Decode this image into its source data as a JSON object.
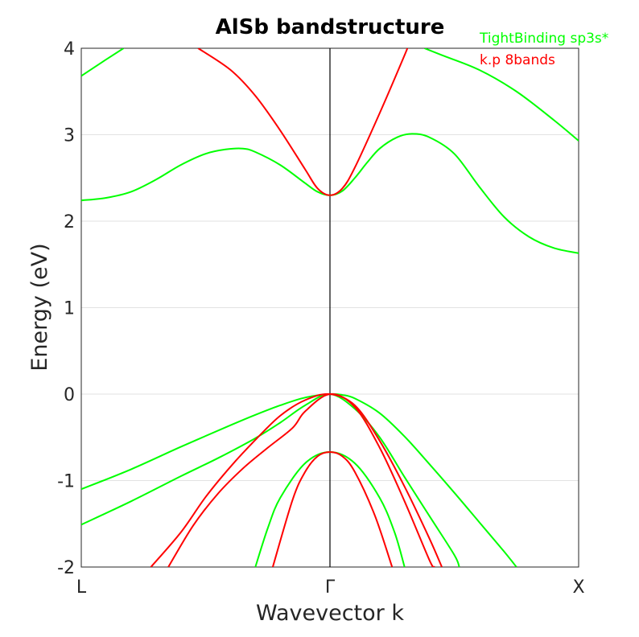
{
  "chart_data": {
    "type": "line",
    "title": "AlSb bandstructure",
    "xlabel": "Wavevector k",
    "ylabel": "Energy (eV)",
    "xlim": [
      -1,
      1
    ],
    "ylim": [
      -2,
      4
    ],
    "x_ticks": [
      {
        "value": -1,
        "label": "L"
      },
      {
        "value": 0,
        "label": "Γ"
      },
      {
        "value": 1,
        "label": "X"
      }
    ],
    "y_ticks": [
      -2,
      -1,
      0,
      1,
      2,
      3,
      4
    ],
    "y_tick_labels": [
      "-2",
      "-1",
      "0",
      "1",
      "2",
      "3",
      "4"
    ],
    "grid": true,
    "vertical_line_at": 0,
    "legend_position": "top-right",
    "series": [
      {
        "name": "TightBinding sp3s*",
        "color": "#00ff00",
        "bands": [
          [
            [
              -1.0,
              3.68
            ],
            [
              -0.9,
              3.87
            ],
            [
              -0.83,
              4.0
            ]
          ],
          [
            [
              -1.0,
              2.24
            ],
            [
              -0.9,
              2.27
            ],
            [
              -0.8,
              2.34
            ],
            [
              -0.7,
              2.48
            ],
            [
              -0.6,
              2.65
            ],
            [
              -0.5,
              2.78
            ],
            [
              -0.42,
              2.83
            ],
            [
              -0.35,
              2.84
            ],
            [
              -0.3,
              2.8
            ],
            [
              -0.2,
              2.65
            ],
            [
              -0.1,
              2.44
            ],
            [
              -0.05,
              2.34
            ],
            [
              0.0,
              2.3
            ],
            [
              0.05,
              2.35
            ],
            [
              0.1,
              2.5
            ],
            [
              0.15,
              2.68
            ],
            [
              0.2,
              2.84
            ],
            [
              0.27,
              2.97
            ],
            [
              0.33,
              3.01
            ],
            [
              0.4,
              2.97
            ],
            [
              0.5,
              2.78
            ],
            [
              0.6,
              2.4
            ],
            [
              0.7,
              2.05
            ],
            [
              0.8,
              1.82
            ],
            [
              0.9,
              1.69
            ],
            [
              1.0,
              1.63
            ]
          ],
          [
            [
              0.38,
              4.0
            ],
            [
              0.45,
              3.92
            ],
            [
              0.6,
              3.75
            ],
            [
              0.75,
              3.5
            ],
            [
              0.9,
              3.17
            ],
            [
              1.0,
              2.93
            ]
          ],
          [
            [
              -1.0,
              -1.1
            ],
            [
              -0.8,
              -0.87
            ],
            [
              -0.6,
              -0.61
            ],
            [
              -0.4,
              -0.36
            ],
            [
              -0.3,
              -0.24
            ],
            [
              -0.2,
              -0.13
            ],
            [
              -0.1,
              -0.04
            ],
            [
              0.0,
              0.0
            ],
            [
              0.05,
              -0.01
            ],
            [
              0.1,
              -0.05
            ],
            [
              0.2,
              -0.22
            ],
            [
              0.3,
              -0.49
            ],
            [
              0.4,
              -0.81
            ],
            [
              0.5,
              -1.14
            ],
            [
              0.6,
              -1.48
            ],
            [
              0.7,
              -1.82
            ],
            [
              0.75,
              -2.0
            ]
          ],
          [
            [
              -1.0,
              -1.51
            ],
            [
              -0.8,
              -1.24
            ],
            [
              -0.6,
              -0.95
            ],
            [
              -0.45,
              -0.74
            ],
            [
              -0.3,
              -0.51
            ],
            [
              -0.2,
              -0.33
            ],
            [
              -0.1,
              -0.13
            ],
            [
              0.0,
              0.0
            ],
            [
              0.1,
              -0.17
            ],
            [
              0.2,
              -0.5
            ],
            [
              0.3,
              -0.96
            ],
            [
              0.4,
              -1.41
            ],
            [
              0.5,
              -1.86
            ],
            [
              0.52,
              -2.0
            ]
          ],
          [
            [
              -0.3,
              -2.0
            ],
            [
              -0.25,
              -1.55
            ],
            [
              -0.2,
              -1.2
            ],
            [
              -0.1,
              -0.8
            ],
            [
              0.0,
              -0.67
            ],
            [
              0.1,
              -0.8
            ],
            [
              0.2,
              -1.2
            ],
            [
              0.26,
              -1.6
            ],
            [
              0.3,
              -2.0
            ]
          ]
        ]
      },
      {
        "name": "k.p 8bands",
        "color": "#ff0000",
        "bands": [
          [
            [
              -0.53,
              4.0
            ],
            [
              -0.4,
              3.75
            ],
            [
              -0.3,
              3.45
            ],
            [
              -0.2,
              3.05
            ],
            [
              -0.1,
              2.6
            ],
            [
              -0.05,
              2.38
            ],
            [
              0.0,
              2.3
            ],
            [
              0.05,
              2.38
            ],
            [
              0.1,
              2.62
            ],
            [
              0.2,
              3.25
            ],
            [
              0.3,
              3.92
            ],
            [
              0.31,
              4.0
            ]
          ],
          [
            [
              -0.72,
              -2.0
            ],
            [
              -0.6,
              -1.6
            ],
            [
              -0.5,
              -1.19
            ],
            [
              -0.4,
              -0.84
            ],
            [
              -0.3,
              -0.53
            ],
            [
              -0.2,
              -0.25
            ],
            [
              -0.1,
              -0.07
            ],
            [
              0.0,
              0.0
            ],
            [
              0.1,
              -0.13
            ],
            [
              0.2,
              -0.54
            ],
            [
              0.3,
              -1.07
            ],
            [
              0.4,
              -1.67
            ],
            [
              0.45,
              -2.0
            ]
          ],
          [
            [
              -0.65,
              -2.0
            ],
            [
              -0.55,
              -1.52
            ],
            [
              -0.45,
              -1.15
            ],
            [
              -0.35,
              -0.86
            ],
            [
              -0.25,
              -0.62
            ],
            [
              -0.15,
              -0.39
            ],
            [
              -0.1,
              -0.2
            ],
            [
              0.0,
              0.0
            ],
            [
              0.1,
              -0.15
            ],
            [
              0.2,
              -0.62
            ],
            [
              0.3,
              -1.24
            ],
            [
              0.4,
              -1.92
            ],
            [
              0.42,
              -2.0
            ]
          ],
          [
            [
              -0.23,
              -2.0
            ],
            [
              -0.15,
              -1.22
            ],
            [
              -0.1,
              -0.9
            ],
            [
              -0.05,
              -0.72
            ],
            [
              0.0,
              -0.67
            ],
            [
              0.05,
              -0.72
            ],
            [
              0.1,
              -0.9
            ],
            [
              0.18,
              -1.4
            ],
            [
              0.25,
              -2.0
            ]
          ]
        ]
      }
    ]
  }
}
